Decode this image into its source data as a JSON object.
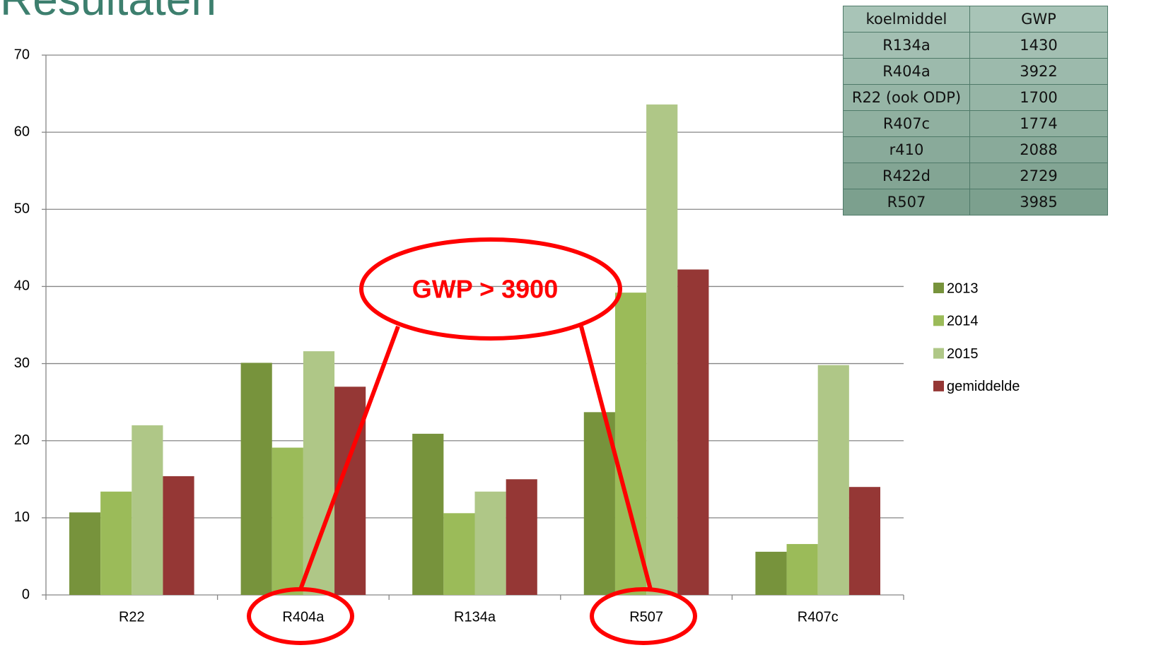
{
  "chart_data": {
    "type": "bar",
    "title": "Resultaten",
    "categories": [
      "R22",
      "R404a",
      "R134a",
      "R507",
      "R407c"
    ],
    "series": [
      {
        "name": "2013",
        "color": "#77933c",
        "values": [
          10.7,
          30.1,
          20.9,
          23.7,
          5.6
        ]
      },
      {
        "name": "2014",
        "color": "#9bbb59",
        "values": [
          13.4,
          19.1,
          10.6,
          39.2,
          6.6
        ]
      },
      {
        "name": "2015",
        "color": "#afc787",
        "values": [
          22,
          31.6,
          13.4,
          63.6,
          29.8
        ]
      },
      {
        "name": "gemiddelde",
        "color": "#953735",
        "values": [
          15.4,
          27,
          15,
          42.2,
          14
        ]
      }
    ],
    "ylim": [
      0,
      70
    ],
    "yticks": [
      0,
      10,
      20,
      30,
      40,
      50,
      60,
      70
    ],
    "grid": true,
    "legend": "right",
    "annotation": "GWP > 3900",
    "table": {
      "columns": [
        "koelmiddel",
        "GWP"
      ],
      "rows": [
        [
          "R134a",
          1430
        ],
        [
          "R404a",
          3922
        ],
        [
          "R22 (ook ODP)",
          1700
        ],
        [
          "R407c",
          1774
        ],
        [
          "r410",
          2088
        ],
        [
          "R422d",
          2729
        ],
        [
          "R507",
          3985
        ]
      ]
    }
  }
}
